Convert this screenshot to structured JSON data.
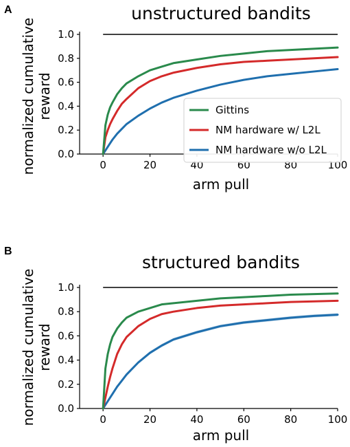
{
  "panels": [
    {
      "letter": "A"
    },
    {
      "letter": "B"
    }
  ],
  "chart_data": [
    {
      "type": "line",
      "title": "unstructured bandits",
      "xlabel": "arm pull",
      "ylabel": "normalized cumulative\nreward",
      "xlim": [
        -10,
        100
      ],
      "ylim": [
        0,
        1.0
      ],
      "xticks": [
        0,
        20,
        40,
        60,
        80,
        100
      ],
      "xtick_labels": [
        "0",
        "20",
        "40",
        "60",
        "80",
        "100"
      ],
      "yticks": [
        0.0,
        0.2,
        0.4,
        0.6,
        0.8,
        1.0
      ],
      "ytick_labels": [
        "0.0",
        "0.2",
        "0.4",
        "0.6",
        "0.8",
        "1.0"
      ],
      "legend_position": "lower-right",
      "reference_line": {
        "y": 1.0,
        "color": "#000000"
      },
      "x": [
        0,
        1,
        2,
        3,
        4,
        6,
        8,
        10,
        15,
        20,
        25,
        30,
        40,
        50,
        60,
        70,
        80,
        90,
        100
      ],
      "series": [
        {
          "name": "Gittins",
          "color": "#2a8a4c",
          "values": [
            0.0,
            0.24,
            0.33,
            0.39,
            0.43,
            0.5,
            0.55,
            0.59,
            0.65,
            0.7,
            0.73,
            0.76,
            0.79,
            0.82,
            0.84,
            0.86,
            0.87,
            0.88,
            0.89
          ]
        },
        {
          "name": "NM hardware w/ L2L",
          "color": "#d42a2a",
          "values": [
            0.0,
            0.14,
            0.2,
            0.25,
            0.29,
            0.36,
            0.42,
            0.46,
            0.55,
            0.61,
            0.65,
            0.68,
            0.72,
            0.75,
            0.77,
            0.78,
            0.79,
            0.8,
            0.81
          ]
        },
        {
          "name": "NM hardware w/o L2L",
          "color": "#1f6fae",
          "values": [
            0.0,
            0.03,
            0.06,
            0.09,
            0.12,
            0.17,
            0.21,
            0.25,
            0.32,
            0.38,
            0.43,
            0.47,
            0.53,
            0.58,
            0.62,
            0.65,
            0.67,
            0.69,
            0.71
          ]
        }
      ]
    },
    {
      "type": "line",
      "title": "structured bandits",
      "xlabel": "arm pull",
      "ylabel": "normalized cumulative\nreward",
      "xlim": [
        -10,
        100
      ],
      "ylim": [
        0,
        1.0
      ],
      "xticks": [
        0,
        20,
        40,
        60,
        80,
        100
      ],
      "xtick_labels": [
        "0",
        "20",
        "40",
        "60",
        "80",
        "100"
      ],
      "yticks": [
        0.0,
        0.2,
        0.4,
        0.6,
        0.8,
        1.0
      ],
      "ytick_labels": [
        "0.0",
        "0.2",
        "0.4",
        "0.6",
        "0.8",
        "1.0"
      ],
      "legend_position": "none",
      "reference_line": {
        "y": 1.0,
        "color": "#000000"
      },
      "x": [
        0,
        1,
        2,
        3,
        4,
        6,
        8,
        10,
        15,
        20,
        25,
        30,
        40,
        50,
        60,
        70,
        80,
        90,
        100
      ],
      "series": [
        {
          "color": "#2a8a4c",
          "band": 0.0,
          "values": [
            0.0,
            0.33,
            0.45,
            0.53,
            0.59,
            0.66,
            0.71,
            0.75,
            0.8,
            0.83,
            0.86,
            0.87,
            0.89,
            0.91,
            0.92,
            0.93,
            0.94,
            0.945,
            0.95
          ]
        },
        {
          "color": "#d42a2a",
          "band": 0.0,
          "values": [
            0.0,
            0.09,
            0.18,
            0.26,
            0.33,
            0.45,
            0.53,
            0.59,
            0.68,
            0.74,
            0.78,
            0.8,
            0.83,
            0.85,
            0.86,
            0.87,
            0.88,
            0.885,
            0.89
          ]
        },
        {
          "color": "#1f6fae",
          "band": 0.012,
          "values": [
            0.0,
            0.03,
            0.06,
            0.09,
            0.12,
            0.18,
            0.23,
            0.28,
            0.38,
            0.46,
            0.52,
            0.57,
            0.63,
            0.68,
            0.71,
            0.73,
            0.75,
            0.765,
            0.775
          ]
        }
      ]
    }
  ]
}
